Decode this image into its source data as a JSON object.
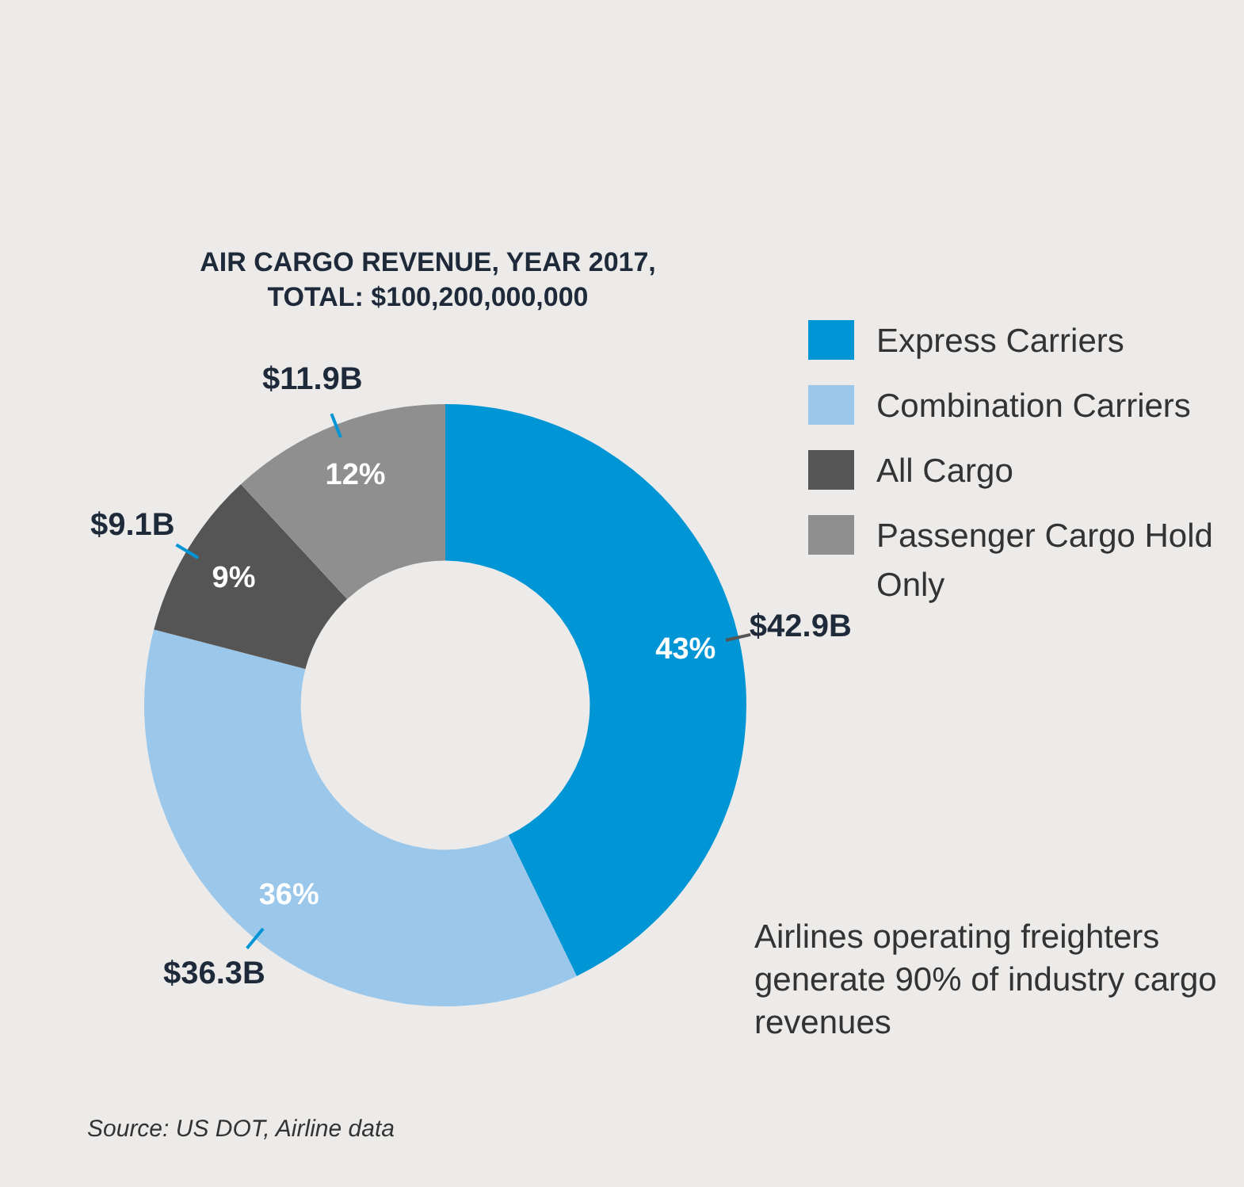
{
  "chart_data": {
    "type": "donut",
    "title": "AIR CARGO REVENUE, YEAR 2017,\nTOTAL: $100,200,000,000",
    "categories": [
      "Express Carriers",
      "Combination Carriers",
      "All Cargo",
      "Passenger Cargo Hold Only"
    ],
    "values": [
      42.9,
      36.3,
      9.1,
      11.9
    ],
    "colors": [
      "#0096d6",
      "#9bc7ea",
      "#555555",
      "#8f8f8f"
    ],
    "value_labels": [
      "43%",
      "36%",
      "9%",
      "12%"
    ],
    "legend": "top right",
    "annotations": [
      {
        "text": "$42.9B",
        "x": "Express Carriers"
      },
      {
        "text": "$36.3B",
        "x": "Combination Carriers"
      },
      {
        "text": "$9.1B",
        "x": "All Cargo"
      },
      {
        "text": "$11.9B",
        "x": "Passenger Cargo Hold Only"
      },
      "Airlines operating freighters generate  90% of industry cargo revenues",
      "Source: US DOT, Airline data"
    ]
  }
}
